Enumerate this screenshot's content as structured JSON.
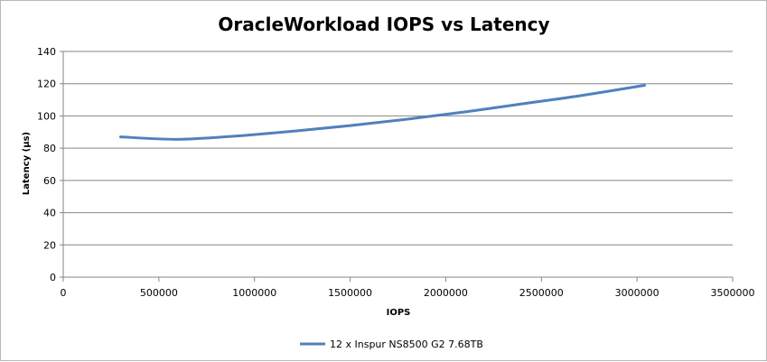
{
  "chart_data": {
    "type": "line",
    "title": "OracleWorkload IOPS vs Latency",
    "xlabel": "IOPS",
    "ylabel": "Latency (µs)",
    "xlim": [
      0,
      3500000
    ],
    "ylim": [
      0,
      140
    ],
    "x_ticks": [
      0,
      500000,
      1000000,
      1500000,
      2000000,
      2500000,
      3000000,
      3500000
    ],
    "y_ticks": [
      0,
      20,
      40,
      60,
      80,
      100,
      120,
      140
    ],
    "grid": {
      "x": false,
      "y": true
    },
    "legend": "bottom",
    "series": [
      {
        "name": "12 x Inspur NS8500 G2 7.68TB",
        "color": "#4f81bd",
        "x": [
          300000,
          600000,
          900000,
          1200000,
          1500000,
          1800000,
          2100000,
          2400000,
          2700000,
          3040000
        ],
        "y": [
          87,
          85.5,
          87.5,
          90.5,
          94,
          98,
          102.5,
          107.5,
          112.5,
          119
        ]
      }
    ]
  }
}
